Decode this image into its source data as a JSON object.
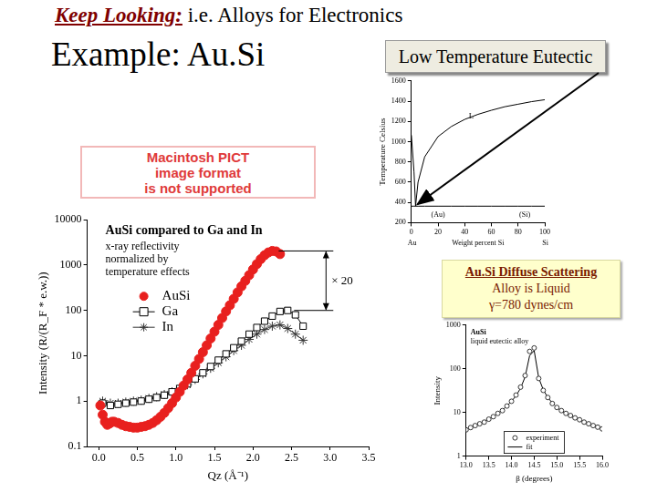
{
  "slide": {
    "title_lead": "Keep Looking:",
    "title_rest": "i.e. Alloys for Electronics",
    "heading": "Example: Au.Si",
    "callout": "Low Temperature Eutectic",
    "placeholder": [
      "Macintosh PICT",
      "image format",
      "is not supported"
    ],
    "note": [
      "Au.Si Diffuse Scattering",
      "Alloy is Liquid",
      "γ=780 dynes/cm"
    ]
  },
  "chart_data": [
    {
      "type": "scatter",
      "title": "AuSi compared to Ga and In",
      "subtitle": "x-ray reflectivity normalized by temperature effects",
      "x_label": "Qz (Å⁻¹)",
      "y_label": "Intensity (R/(R_F * e.w.))",
      "log": "y",
      "grid": false,
      "legend": "left",
      "annotation": "× 20",
      "xlim": [
        -0.15,
        3.5
      ],
      "xticks": [
        {
          "value": 0,
          "label": "0.0"
        },
        0.5,
        {
          "value": 1,
          "label": "1.0"
        },
        1.5,
        {
          "value": 2,
          "label": "2.0"
        },
        2.5,
        {
          "value": 3,
          "label": "3.0"
        },
        3.5
      ],
      "ylim": [
        0.1,
        10000
      ],
      "yticks": [
        0.1,
        1,
        10,
        100,
        1000,
        10000
      ],
      "series": [
        {
          "name": "AuSi",
          "color": "#e8201e",
          "marker": "circle",
          "line_style": "none",
          "x": [
            0.02,
            0.05,
            0.08,
            0.11,
            0.14,
            0.17,
            0.2,
            0.25,
            0.3,
            0.35,
            0.4,
            0.45,
            0.5,
            0.55,
            0.6,
            0.65,
            0.7,
            0.75,
            0.8,
            0.85,
            0.9,
            0.95,
            1.0,
            1.05,
            1.1,
            1.15,
            1.2,
            1.25,
            1.3,
            1.35,
            1.4,
            1.45,
            1.5,
            1.55,
            1.6,
            1.65,
            1.7,
            1.75,
            1.8,
            1.85,
            1.9,
            1.95,
            2.0,
            2.05,
            2.1,
            2.15,
            2.2,
            2.25,
            2.3,
            2.35
          ],
          "values": [
            0.8,
            0.5,
            0.35,
            0.3,
            0.32,
            0.35,
            0.35,
            0.33,
            0.3,
            0.28,
            0.27,
            0.26,
            0.26,
            0.27,
            0.28,
            0.3,
            0.33,
            0.38,
            0.45,
            0.55,
            0.7,
            0.9,
            1.2,
            1.6,
            2.2,
            3,
            4.2,
            6,
            8.5,
            12,
            17,
            24,
            34,
            48,
            68,
            95,
            130,
            180,
            250,
            340,
            450,
            600,
            800,
            1050,
            1350,
            1650,
            1900,
            2050,
            2000,
            1750
          ]
        },
        {
          "name": "Ga",
          "color": "#000000",
          "marker": "square",
          "line_style": "solid",
          "x": [
            0.05,
            0.15,
            0.25,
            0.35,
            0.45,
            0.55,
            0.65,
            0.75,
            0.85,
            0.95,
            1.05,
            1.15,
            1.25,
            1.35,
            1.45,
            1.55,
            1.65,
            1.75,
            1.85,
            1.95,
            2.05,
            2.15,
            2.25,
            2.35,
            2.45,
            2.55,
            2.65
          ],
          "values": [
            0.9,
            0.8,
            0.85,
            0.9,
            0.95,
            1.0,
            1.1,
            1.2,
            1.35,
            1.6,
            1.9,
            2.4,
            3.1,
            4.2,
            5.8,
            8,
            11,
            15,
            21,
            30,
            42,
            58,
            75,
            95,
            100,
            80,
            45
          ]
        },
        {
          "name": "In",
          "color": "#333333",
          "marker": "star",
          "line_style": "solid",
          "x": [
            0.05,
            0.15,
            0.25,
            0.35,
            0.45,
            0.55,
            0.65,
            0.75,
            0.85,
            0.95,
            1.05,
            1.15,
            1.25,
            1.35,
            1.45,
            1.55,
            1.65,
            1.75,
            1.85,
            1.95,
            2.05,
            2.15,
            2.25,
            2.35,
            2.45,
            2.55,
            2.65
          ],
          "values": [
            1.0,
            0.9,
            0.9,
            0.95,
            1.0,
            1.05,
            1.15,
            1.25,
            1.4,
            1.6,
            1.9,
            2.3,
            3,
            4,
            5.3,
            7,
            9.5,
            13,
            17,
            23,
            30,
            38,
            45,
            48,
            40,
            30,
            22
          ]
        }
      ]
    },
    {
      "type": "line",
      "x_label": "Weight percent Si",
      "y_label": "Temperature Celsius",
      "grid": false,
      "annotations": [
        "L",
        "(Au)",
        "(Si)"
      ],
      "x_end_labels": [
        "Au",
        "Si"
      ],
      "xlim": [
        0,
        100
      ],
      "xticks": [
        0,
        20,
        40,
        60,
        80,
        100
      ],
      "ylim": [
        200,
        1600
      ],
      "yticks": [
        200,
        400,
        600,
        800,
        1000,
        1200,
        1400,
        1600
      ],
      "x": [
        0,
        2,
        3.16,
        5,
        10,
        20,
        30,
        40,
        50,
        60,
        70,
        80,
        90,
        100
      ],
      "series": [
        {
          "color": "#000000",
          "values": [
            1064,
            700,
            363,
            600,
            850,
            1050,
            1150,
            1220,
            1270,
            1310,
            1345,
            1370,
            1395,
            1414
          ]
        },
        {
          "color": "#000000",
          "values": [
            363,
            363,
            363,
            363,
            363,
            363,
            363,
            363,
            363,
            363,
            363,
            363,
            363,
            363
          ]
        }
      ]
    },
    {
      "type": "scatter",
      "texts": [
        "AuSi",
        "liquid eutectic alloy"
      ],
      "x_label": "β (degrees)",
      "y_label": "Intensity",
      "log": "y",
      "grid": false,
      "legend": "bottom",
      "xlim": [
        13,
        16
      ],
      "xticks": [
        {
          "value": 13,
          "label": "13.0"
        },
        13.5,
        {
          "value": 14,
          "label": "14.0"
        },
        14.5,
        {
          "value": 15,
          "label": "15.0"
        },
        15.5,
        {
          "value": 16,
          "label": "16.0"
        }
      ],
      "ylim": [
        1,
        1000
      ],
      "yticks": [
        1,
        10,
        100,
        1000
      ],
      "x": [
        13.0,
        13.1,
        13.2,
        13.3,
        13.4,
        13.5,
        13.6,
        13.7,
        13.8,
        13.9,
        14.0,
        14.1,
        14.2,
        14.3,
        14.4,
        14.5,
        14.6,
        14.7,
        14.8,
        14.9,
        15.0,
        15.1,
        15.2,
        15.3,
        15.4,
        15.5,
        15.6,
        15.7,
        15.8,
        15.9,
        16.0
      ],
      "series": [
        {
          "name": "experiment",
          "color": "#333333",
          "marker": "circle",
          "line_style": "none",
          "values": [
            4,
            4.5,
            5,
            5.5,
            6,
            7,
            8,
            9.5,
            11,
            14,
            18,
            25,
            38,
            70,
            250,
            300,
            60,
            32,
            22,
            16,
            13,
            11,
            9.5,
            8.5,
            7.5,
            6.8,
            6,
            5.5,
            5,
            4.6,
            4.2
          ]
        },
        {
          "name": "fit",
          "color": "#000000",
          "line_style": "solid",
          "values": [
            4.1,
            4.5,
            5,
            5.6,
            6.3,
            7.1,
            8.1,
            9.5,
            11.4,
            14,
            18,
            24,
            36,
            65,
            200,
            260,
            62,
            33,
            22,
            16.5,
            13,
            10.8,
            9.3,
            8.2,
            7.3,
            6.6,
            6,
            5.5,
            5,
            4.6,
            4.3
          ]
        }
      ]
    }
  ]
}
